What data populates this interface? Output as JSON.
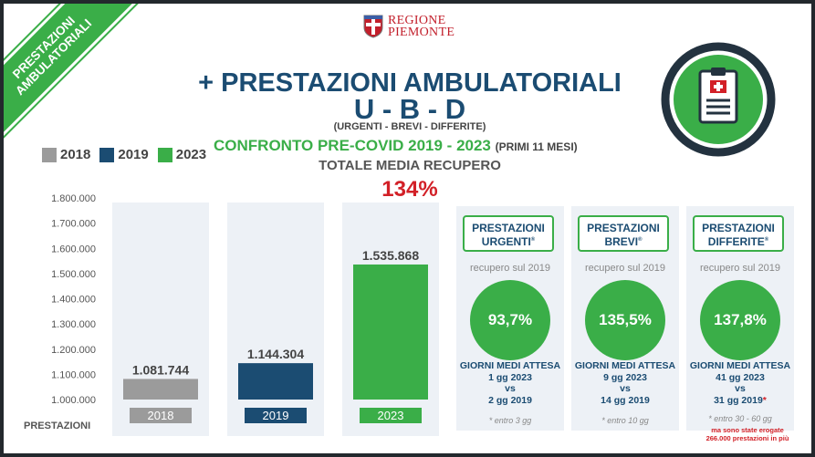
{
  "corner": {
    "line1": "PRESTAZIONI",
    "line2": "AMBULATORIALI"
  },
  "logo": {
    "line1": "REGIONE",
    "line2": "PIEMONTE"
  },
  "header": {
    "plus": "+",
    "title": "PRESTAZIONI AMBULATORIALI",
    "code": "U - B - D",
    "subtitle": "(URGENTI - BREVI - DIFFERITE)",
    "comparison": "CONFRONTO PRE-COVID 2019 -  2023",
    "comparison_note": "(PRIMI 11 MESI)",
    "total_label": "TOTALE MEDIA RECUPERO",
    "total_value": "134%"
  },
  "legend": [
    {
      "label": "2018",
      "color": "#9b9b9b"
    },
    {
      "label": "2019",
      "color": "#1b4c72"
    },
    {
      "label": "2023",
      "color": "#3aae48"
    }
  ],
  "chart_data": {
    "type": "bar",
    "categories": [
      "2018",
      "2019",
      "2023"
    ],
    "values": [
      1081744,
      1144304,
      1535868
    ],
    "value_labels": [
      "1.081.744",
      "1.144.304",
      "1.535.868"
    ],
    "colors": [
      "#9b9b9b",
      "#1b4c72",
      "#3aae48"
    ],
    "ylim": [
      1000000,
      1800000
    ],
    "yticks": [
      1000000,
      1100000,
      1200000,
      1300000,
      1400000,
      1500000,
      1600000,
      1700000,
      1800000
    ],
    "ytick_labels": [
      "1.000.000",
      "1.100.000",
      "1.200.000",
      "1.300.000",
      "1.400.000",
      "1.500.000",
      "1.600.000",
      "1.700.000",
      "1.800.000"
    ],
    "xlabel": "PRESTAZIONI",
    "grid": false
  },
  "cards": [
    {
      "title1": "PRESTAZIONI",
      "title2": "URGENTI",
      "reg": "®",
      "recovery_label": "recupero sul 2019",
      "recovery": "93,7%",
      "wait_title": "GIORNI MEDI ATTESA",
      "wait_2023": "1 gg 2023",
      "vs": "vs",
      "wait_2019": "2 gg 2019",
      "star": "",
      "note": "* entro 3 gg"
    },
    {
      "title1": "PRESTAZIONI",
      "title2": "BREVI",
      "reg": "®",
      "recovery_label": "recupero sul 2019",
      "recovery": "135,5%",
      "wait_title": "GIORNI MEDI ATTESA",
      "wait_2023": "9 gg 2023",
      "vs": "vs",
      "wait_2019": "14 gg 2019",
      "star": "",
      "note": "* entro 10 gg"
    },
    {
      "title1": "PRESTAZIONI",
      "title2": "DIFFERITE",
      "reg": "®",
      "recovery_label": "recupero sul 2019",
      "recovery": "137,8%",
      "wait_title": "GIORNI MEDI ATTESA",
      "wait_2023": "41 gg 2023",
      "vs": "vs",
      "wait_2019": "31 gg 2019",
      "star": "*",
      "note": "* entro 30 - 60 gg"
    }
  ],
  "footnote": {
    "line1": "ma sono state erogate",
    "line2": "266.000 prestazioni in più"
  }
}
